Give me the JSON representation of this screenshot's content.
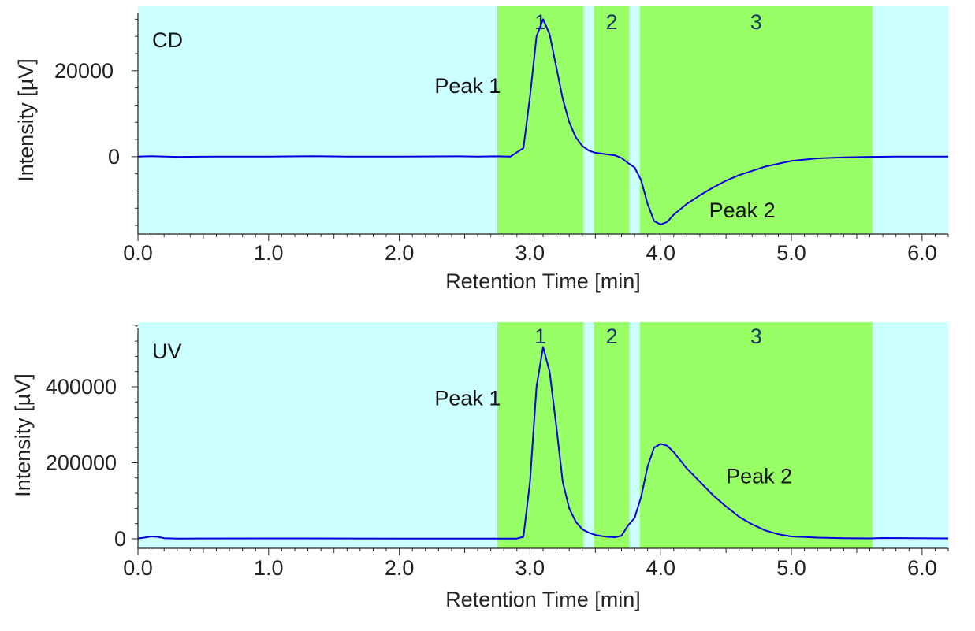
{
  "chart_data": [
    {
      "type": "line",
      "panel_label": "CD",
      "xlabel": "Retention Time [min]",
      "ylabel": "Intensity [µV]",
      "xlim": [
        0.0,
        6.2
      ],
      "ylim": [
        -18000,
        35000
      ],
      "x_ticks": [
        "0.0",
        "1.0",
        "2.0",
        "3.0",
        "4.0",
        "5.0",
        "6.0"
      ],
      "x_tick_values": [
        0,
        1,
        2,
        3,
        4,
        5,
        6
      ],
      "y_ticks": [
        "0",
        "20000"
      ],
      "y_tick_values": [
        0,
        20000
      ],
      "background_color": "#ccffff",
      "region_color": "#99ff66",
      "line_color": "#0000dd",
      "grid": false,
      "regions": [
        {
          "label": "1",
          "start": 2.75,
          "end": 3.41
        },
        {
          "label": "2",
          "start": 3.49,
          "end": 3.76
        },
        {
          "label": "3",
          "start": 3.84,
          "end": 5.62
        }
      ],
      "annotations": [
        {
          "text": "Peak 1",
          "x": 2.27,
          "y": 16500
        },
        {
          "text": "Peak 2",
          "x": 4.37,
          "y": -12500
        }
      ],
      "series": [
        {
          "x": [
            0.0,
            0.1,
            0.3,
            0.6,
            1.0,
            1.35,
            1.6,
            2.0,
            2.45,
            2.6,
            2.75,
            2.85,
            2.95,
            3.0,
            3.05,
            3.1,
            3.15,
            3.2,
            3.25,
            3.3,
            3.35,
            3.4,
            3.45,
            3.5,
            3.55,
            3.6,
            3.65,
            3.7,
            3.75,
            3.8,
            3.85,
            3.9,
            3.95,
            4.0,
            4.05,
            4.1,
            4.2,
            4.3,
            4.4,
            4.5,
            4.6,
            4.8,
            5.0,
            5.2,
            5.4,
            5.6,
            5.8,
            6.2
          ],
          "y": [
            0,
            100,
            -50,
            0,
            0,
            120,
            0,
            0,
            80,
            0,
            80,
            0,
            2000,
            14000,
            28000,
            32000,
            28500,
            21000,
            13500,
            8000,
            4500,
            2500,
            1400,
            900,
            700,
            500,
            300,
            -300,
            -1500,
            -2500,
            -5500,
            -11000,
            -15000,
            -15800,
            -15200,
            -13500,
            -11000,
            -9000,
            -7200,
            -5600,
            -4300,
            -2300,
            -1000,
            -400,
            -150,
            -50,
            0,
            0
          ]
        }
      ]
    },
    {
      "type": "line",
      "panel_label": "UV",
      "xlabel": "Retention Time [min]",
      "ylabel": "Intensity [µV]",
      "xlim": [
        0.0,
        6.2
      ],
      "ylim": [
        -25000,
        570000
      ],
      "x_ticks": [
        "0.0",
        "1.0",
        "2.0",
        "3.0",
        "4.0",
        "5.0",
        "6.0"
      ],
      "x_tick_values": [
        0,
        1,
        2,
        3,
        4,
        5,
        6
      ],
      "y_ticks": [
        "0",
        "200000",
        "400000"
      ],
      "y_tick_values": [
        0,
        200000,
        400000
      ],
      "background_color": "#ccffff",
      "region_color": "#99ff66",
      "line_color": "#0000dd",
      "grid": false,
      "regions": [
        {
          "label": "1",
          "start": 2.75,
          "end": 3.41
        },
        {
          "label": "2",
          "start": 3.49,
          "end": 3.76
        },
        {
          "label": "3",
          "start": 3.84,
          "end": 5.62
        }
      ],
      "annotations": [
        {
          "text": "Peak 1",
          "x": 2.27,
          "y": 370000
        },
        {
          "text": "Peak 2",
          "x": 4.5,
          "y": 165000
        }
      ],
      "series": [
        {
          "x": [
            0.0,
            0.05,
            0.1,
            0.15,
            0.2,
            0.3,
            1.0,
            2.0,
            2.9,
            2.95,
            3.0,
            3.05,
            3.1,
            3.15,
            3.2,
            3.25,
            3.3,
            3.35,
            3.4,
            3.45,
            3.5,
            3.55,
            3.6,
            3.65,
            3.7,
            3.75,
            3.8,
            3.85,
            3.9,
            3.95,
            4.0,
            4.05,
            4.1,
            4.2,
            4.3,
            4.4,
            4.5,
            4.6,
            4.7,
            4.8,
            4.9,
            5.0,
            5.2,
            5.4,
            5.6,
            5.7,
            6.2
          ],
          "y": [
            1000,
            3000,
            6000,
            5000,
            1500,
            500,
            1000,
            500,
            500,
            5000,
            150000,
            400000,
            505000,
            440000,
            300000,
            150000,
            80000,
            45000,
            25000,
            16000,
            10000,
            7000,
            5000,
            4000,
            8000,
            35000,
            55000,
            110000,
            190000,
            240000,
            250000,
            245000,
            228000,
            185000,
            150000,
            115000,
            85000,
            58000,
            38000,
            22000,
            12000,
            6000,
            3000,
            1500,
            1000,
            2000,
            1000
          ]
        }
      ]
    }
  ]
}
